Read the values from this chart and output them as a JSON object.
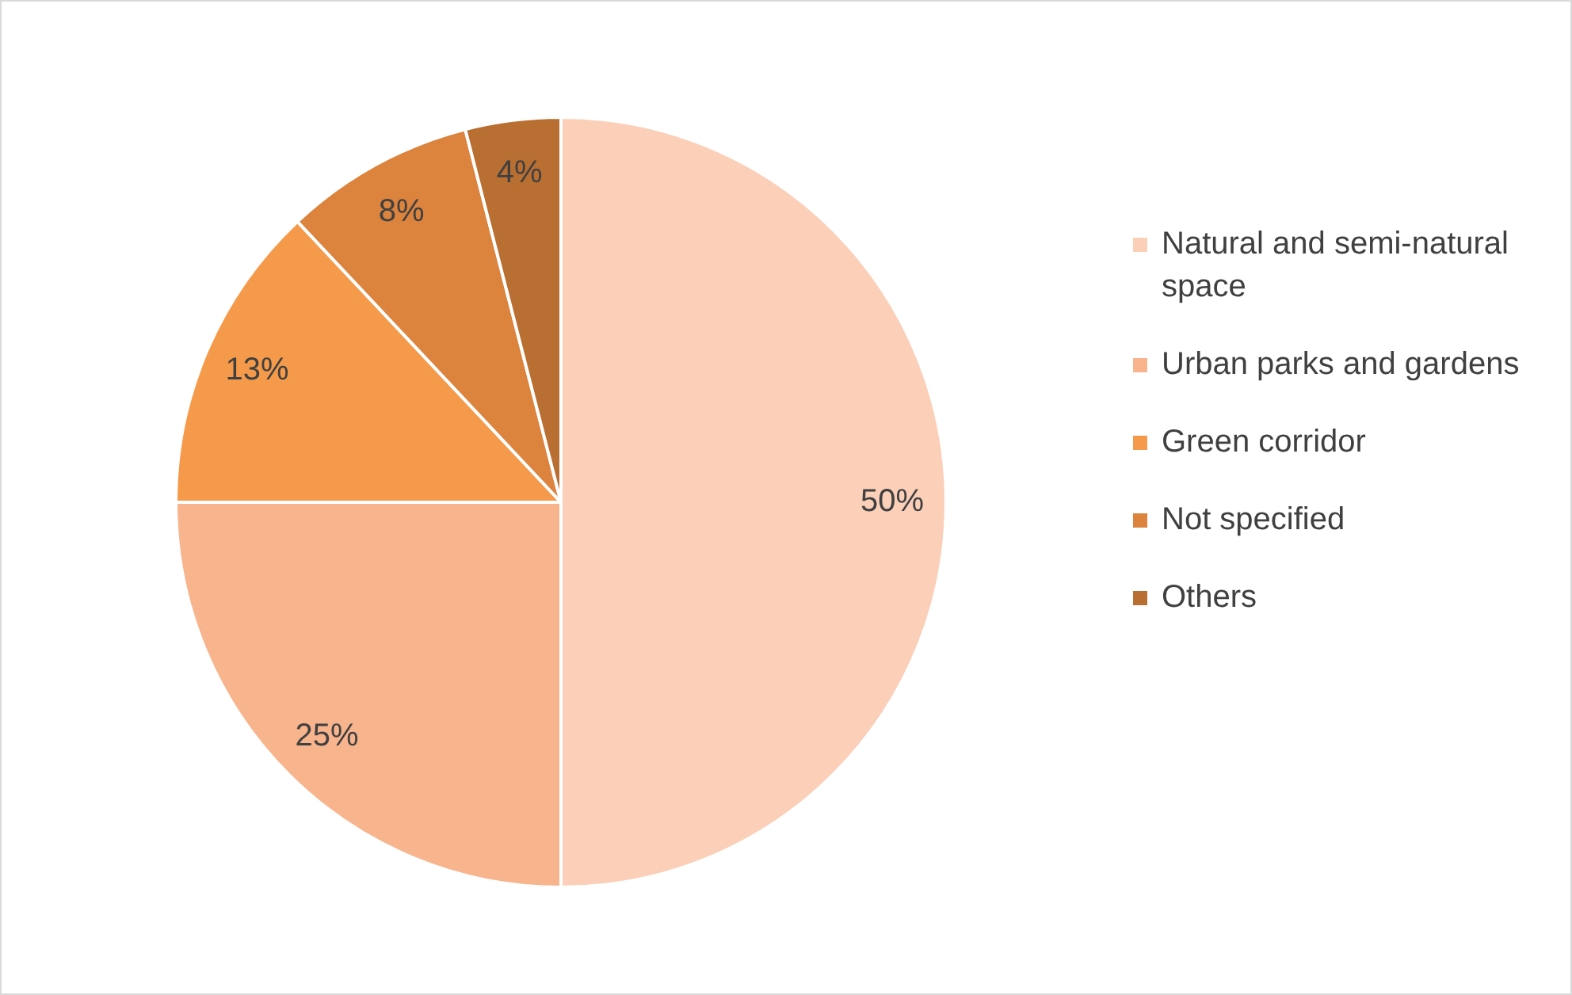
{
  "chart_data": {
    "type": "pie",
    "categories": [
      "Natural and semi-natural space",
      "Urban parks and gardens",
      "Green corridor",
      "Not specified",
      "Others"
    ],
    "values": [
      50,
      25,
      13,
      8,
      4
    ],
    "colors": [
      "#fbcfb8",
      "#f8b48d",
      "#f59a4a",
      "#dc833e",
      "#b96e32"
    ],
    "value_labels": [
      "50%",
      "25%",
      "13%",
      "8%",
      "4%"
    ],
    "legend": "right"
  }
}
